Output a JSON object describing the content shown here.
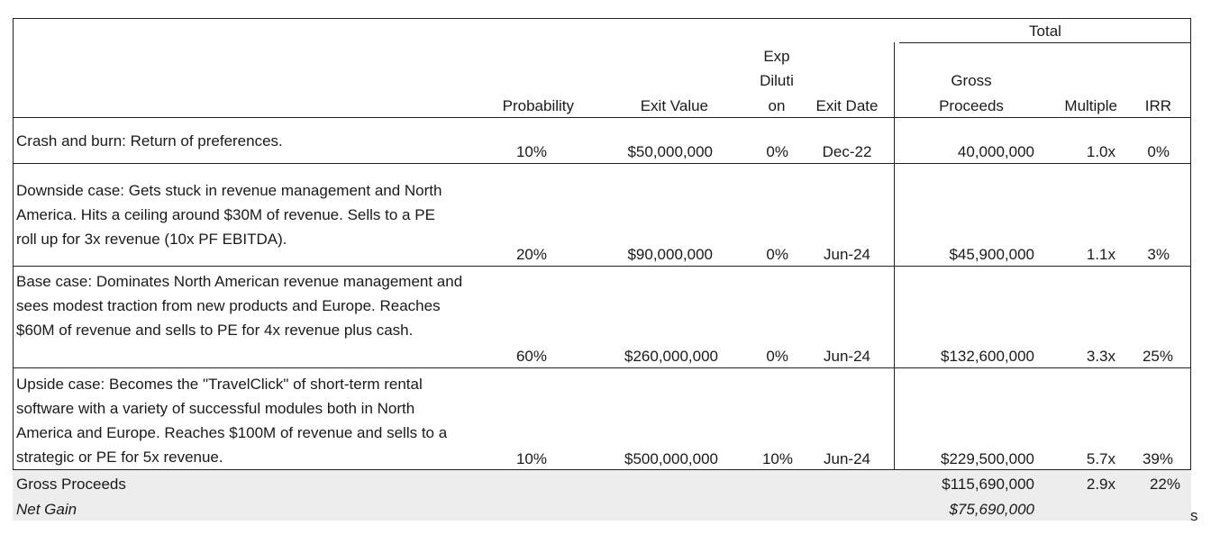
{
  "header": {
    "total_label": "Total",
    "probability": "Probability",
    "exit_value": "Exit Value",
    "exp_dilution_lines": [
      "Exp",
      "Diluti",
      "on"
    ],
    "exit_date": "Exit Date",
    "gross_proceeds_lines": [
      "Gross",
      "Proceeds"
    ],
    "multiple": "Multiple",
    "irr": "IRR"
  },
  "rows": [
    {
      "description": "Crash and burn: Return of preferences.",
      "probability": "10%",
      "exit_value": "$50,000,000",
      "exp_dilution": "0%",
      "exit_date": "Dec-22",
      "gross_proceeds": "40,000,000",
      "multiple": "1.0x",
      "irr": "0%"
    },
    {
      "description": "Downside case: Gets stuck in revenue management and North America. Hits a ceiling around $30M of revenue. Sells to a PE roll up for 3x revenue (10x PF EBITDA).",
      "probability": "20%",
      "exit_value": "$90,000,000",
      "exp_dilution": "0%",
      "exit_date": "Jun-24",
      "gross_proceeds": "$45,900,000",
      "multiple": "1.1x",
      "irr": "3%"
    },
    {
      "description": "Base case: Dominates North American revenue management and sees modest traction from new products and Europe. Reaches $60M of revenue and sells to PE for 4x revenue plus cash.",
      "probability": "60%",
      "exit_value": "$260,000,000",
      "exp_dilution": "0%",
      "exit_date": "Jun-24",
      "gross_proceeds": "$132,600,000",
      "multiple": "3.3x",
      "irr": "25%"
    },
    {
      "description": "Upside case: Becomes the \"TravelClick\" of short-term rental software with a variety of successful modules both in North America and Europe. Reaches $100M of revenue and sells to a strategic or PE for 5x revenue.",
      "probability": "10%",
      "exit_value": "$500,000,000",
      "exp_dilution": "10%",
      "exit_date": "Jun-24",
      "gross_proceeds": "$229,500,000",
      "multiple": "5.7x",
      "irr": "39%"
    }
  ],
  "summary": {
    "gross_label": "Gross Proceeds",
    "gross_value": "$115,690,000",
    "gross_multiple": "2.9x",
    "gross_irr": "22%",
    "net_label": "Net Gain",
    "net_value": "$75,690,000"
  },
  "stray_char": "s"
}
